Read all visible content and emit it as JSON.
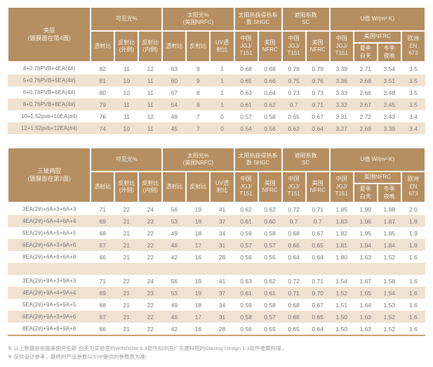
{
  "header": {
    "groups": {
      "visible": "可见光%",
      "solar": "太阳光%\n(美国NRFC)",
      "shgc": "太阳热获得热系\n数 SHGC",
      "sc": "遮阳系数\nSC",
      "u_value": "U值 W/(m²·K)"
    },
    "subs": {
      "transmittance": "透射比",
      "reflectance_out": "反射比\n(外侧)",
      "reflectance_in": "反射比\n(内侧)",
      "reflectance": "反射比",
      "uv_transmittance": "UV透\n射比",
      "china_jgj": "中国\nJGJ/\nT151",
      "us_nfrc_2line": "美国\nNFRC",
      "us_nfrc": "美国NFRC",
      "summer_day": "夏季\n白天",
      "winter_night": "冬季\n夜晚",
      "europe_en673": "欧洲\nEN\n673"
    }
  },
  "table1": {
    "title": "夹层\n(镀膜面在第4面)",
    "rows": [
      {
        "name": "4+0.76PVB+4EA(4#)",
        "values": [
          "82",
          "11",
          "12",
          "63",
          "9",
          "1",
          "0.68",
          "0.68",
          "0.78",
          "0.79",
          "3.39",
          "2.71",
          "3.54",
          "3.5"
        ]
      },
      {
        "name": "5+0.76PVB+5EA(4#)",
        "values": [
          "81",
          "10",
          "11",
          "60",
          "9",
          "1",
          "0.65",
          "0.66",
          "0.75",
          "0.76",
          "3.36",
          "2.68",
          "3.51",
          "3.5"
        ]
      },
      {
        "name": "6+0.76PVB+6EA(4#)",
        "values": [
          "80",
          "10",
          "11",
          "57",
          "8",
          "1",
          "0.63",
          "0.64",
          "0.73",
          "0.73",
          "3.33",
          "2.66",
          "3.48",
          "3.5"
        ]
      },
      {
        "name": "8+0.76PVB+8EA(4#)",
        "values": [
          "79",
          "11",
          "11",
          "54",
          "8",
          "1",
          "0.61",
          "0.62",
          "0.7",
          "0.71",
          "3.32",
          "2.67",
          "3.45",
          "3.5"
        ]
      },
      {
        "name": "10+1.52pvb+10EA(#4)",
        "values": [
          "76",
          "11",
          "12",
          "49",
          "7",
          "0",
          "0.57",
          "0.58",
          "0.65",
          "0.67",
          "3.31",
          "2.72",
          "3.43",
          "3.4"
        ]
      },
      {
        "name": "12+1.52pvb+12EA(#4)",
        "values": [
          "74",
          "10",
          "11",
          "45",
          "7",
          "0",
          "0.54",
          "0.56",
          "0.62",
          "0.64",
          "3.27",
          "2.69",
          "3.39",
          "3.4"
        ]
      }
    ]
  },
  "table2": {
    "title": "三玻两腔\n(镀膜面在第2面)",
    "rows": [
      {
        "name": "3EA(2#)+6A+3+6A+3",
        "values": [
          "71",
          "22",
          "24",
          "56",
          "19",
          "41",
          "0.62",
          "0.62",
          "0.72",
          "0.71",
          "1.85",
          "1.99",
          "1.88",
          "2.0"
        ]
      },
      {
        "name": "4EA(2#)+6A+4+6A+4",
        "values": [
          "69",
          "21",
          "23",
          "53",
          "19",
          "37",
          "0.61",
          "0.60",
          "0.7",
          "0.7",
          "1.83",
          "1.96",
          "1.87",
          "1.9"
        ]
      },
      {
        "name": "5EA(2#)+6A+5+6A+5",
        "values": [
          "68",
          "21",
          "22",
          "49",
          "18",
          "34",
          "0.59",
          "0.58",
          "0.68",
          "0.67",
          "1.82",
          "1.95",
          "1.85",
          "1.9"
        ]
      },
      {
        "name": "6EA(2#)+6A+3+6A+6",
        "values": [
          "67",
          "21",
          "22",
          "46",
          "17",
          "31",
          "0.57",
          "0.57",
          "0.66",
          "0.65",
          "1.81",
          "1.94",
          "1.84",
          "1.9"
        ]
      },
      {
        "name": "8EA(2#)+6A+8+6A+8",
        "values": [
          "66",
          "21",
          "22",
          "42",
          "16",
          "28",
          "0.56",
          "0.55",
          "0.64",
          "0.64",
          "1.80",
          "1.63",
          "1.52",
          "1.6"
        ]
      },
      {
        "name": "",
        "separator": true,
        "values": [
          "",
          "",
          "",
          "",
          "",
          "",
          "",
          "",
          "",
          "",
          "",
          "",
          "",
          ""
        ]
      },
      {
        "name": "3EA(2#)+9A+3+9A+3",
        "values": [
          "71",
          "22",
          "24",
          "56",
          "19",
          "41",
          "0.63",
          "0.62",
          "0.72",
          "0.71",
          "1.54",
          "1.67",
          "1.56",
          "1.6"
        ]
      },
      {
        "name": "4EA(2#)+9A+4+9A+4",
        "values": [
          "69",
          "21",
          "23",
          "53",
          "19",
          "37",
          "0.61",
          "0.61",
          "0.71",
          "0.70",
          "1.52",
          "1.65",
          "1.54",
          "1.6"
        ]
      },
      {
        "name": "5EA(2#)+9A+5+9A+5",
        "values": [
          "68",
          "21",
          "22",
          "49",
          "18",
          "34",
          "0.59",
          "0.58",
          "0.68",
          "0.67",
          "1.51",
          "1.64",
          "1.53",
          "1.6"
        ]
      },
      {
        "name": "6EA(2#)+9A+3+9A+6",
        "values": [
          "67",
          "21",
          "22",
          "46",
          "17",
          "31",
          "0.58",
          "0.57",
          "0.66",
          "0.65",
          "1.50",
          "1.63",
          "1.52",
          "1.6"
        ]
      },
      {
        "name": "8EA(2#)+9A+8+9A+8",
        "values": [
          "66",
          "21",
          "22",
          "42",
          "16",
          "28",
          "0.56",
          "0.55",
          "0.65",
          "0.64",
          "1.50",
          "1.63",
          "1.52",
          "1.6"
        ]
      }
    ]
  },
  "notes": [
    "※ 以上数据是依据美国劳伦斯·伯克力实验室的WINDOW 6.3软件和中国广东建科院的Glazing Design 1.3软件推算所得。",
    "※ 仅供设计参考，最终的产品参数以SYP提供的参数表为准!"
  ],
  "colors": {
    "header_bg": "#b58e61",
    "header_text": "#f9f2e4",
    "row_alt_bg": "#f0e2d0",
    "body_text": "#767676",
    "table_bottom_border": "#c9a06a"
  }
}
